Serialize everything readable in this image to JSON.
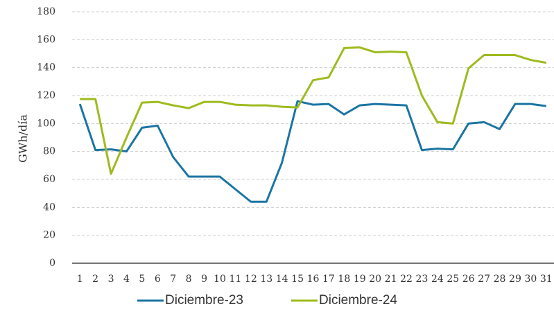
{
  "chart_data": {
    "type": "line",
    "y_label": "GWh/día",
    "categories": [
      "1",
      "2",
      "3",
      "4",
      "5",
      "6",
      "7",
      "8",
      "9",
      "10",
      "11",
      "12",
      "13",
      "14",
      "15",
      "16",
      "17",
      "18",
      "19",
      "20",
      "21",
      "22",
      "23",
      "24",
      "25",
      "26",
      "27",
      "28",
      "29",
      "30",
      "31"
    ],
    "series": [
      {
        "name": "Diciembre-23",
        "color": "#1b75a3",
        "values": [
          114,
          81,
          81.5,
          80,
          97,
          98.5,
          76,
          62,
          62,
          62,
          53,
          44,
          44,
          72,
          116,
          113.5,
          114,
          106.5,
          113,
          114,
          113.5,
          113,
          81,
          82,
          81.5,
          100,
          101,
          96,
          114,
          114,
          112.5
        ]
      },
      {
        "name": "Diciembre-24",
        "color": "#9dbb1e",
        "values": [
          117.5,
          117.5,
          64,
          90,
          115,
          115.5,
          113,
          111,
          115.5,
          115.5,
          113.5,
          113,
          113,
          112,
          111.5,
          131,
          133,
          154,
          154.5,
          151,
          151.5,
          151,
          120,
          101,
          100,
          139.5,
          149,
          149,
          149,
          145.5,
          143.5
        ]
      }
    ],
    "ylim": [
      0,
      180
    ],
    "yticks": [
      0,
      20,
      40,
      60,
      80,
      100,
      120,
      140,
      160,
      180
    ],
    "grid": true,
    "legend": "bottom"
  }
}
